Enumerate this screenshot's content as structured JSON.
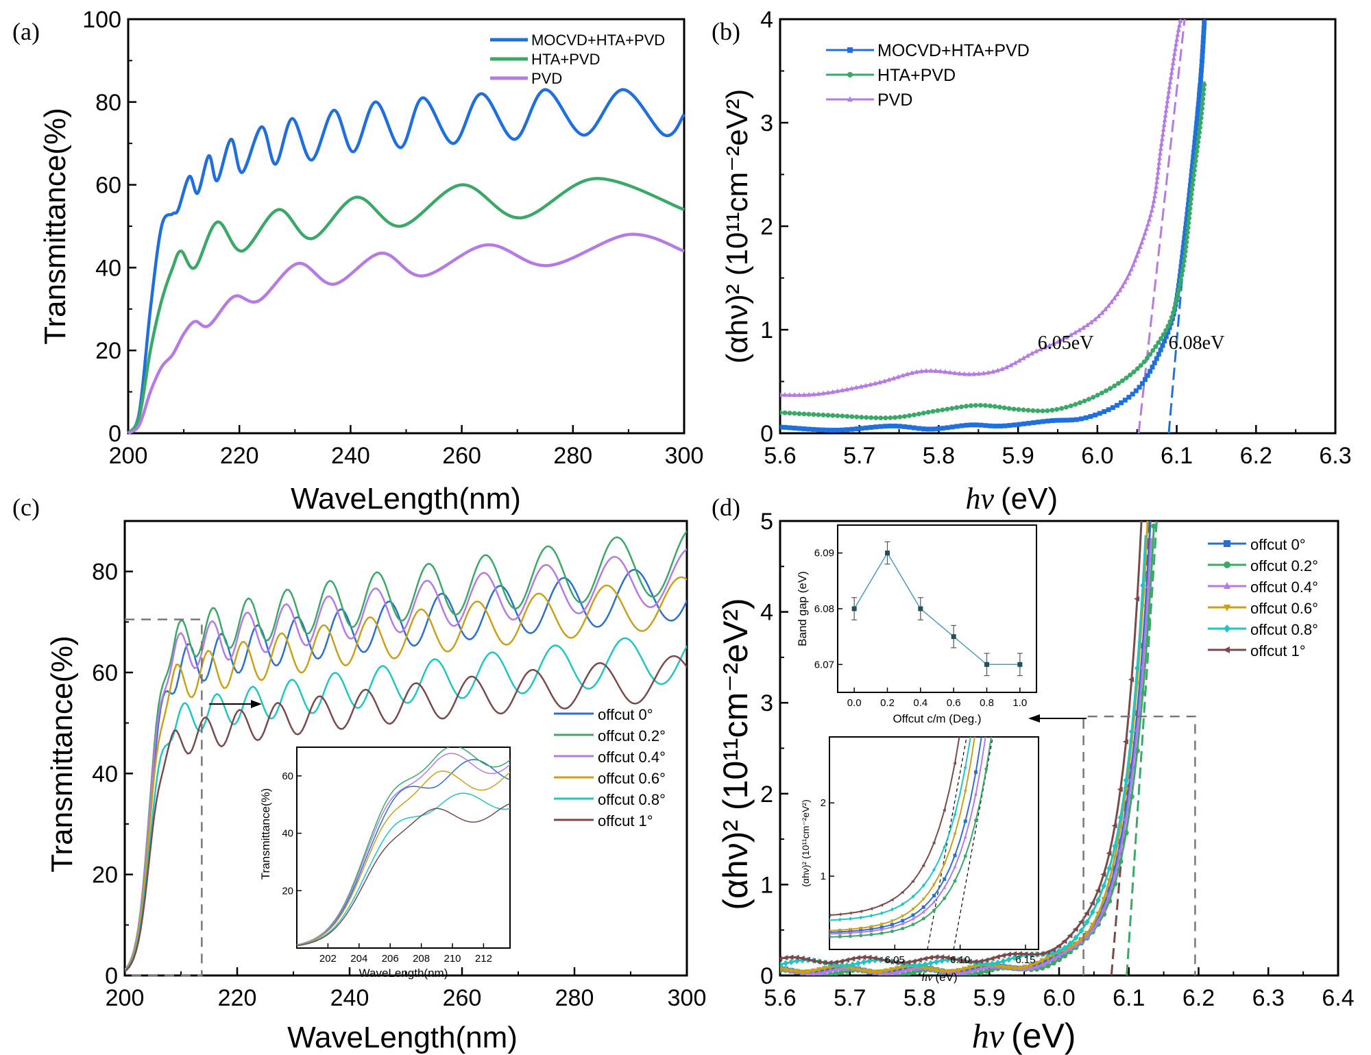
{
  "figure": {
    "panels": [
      "(a)",
      "(b)",
      "(c)",
      "(d)"
    ]
  },
  "chart_data": [
    {
      "id": "a",
      "panel_label": "(a)",
      "type": "line",
      "title": "",
      "xlabel": "WaveLength(nm)",
      "ylabel": "Transmittance(%)",
      "xlim": [
        200,
        300
      ],
      "ylim": [
        0,
        100
      ],
      "xticks": [
        200,
        220,
        240,
        260,
        280,
        300
      ],
      "yticks": [
        0,
        20,
        40,
        60,
        80,
        100
      ],
      "legend_position": "top-right",
      "series": [
        {
          "name": "MOCVD+HTA+PVD",
          "color": "#1f6fdc",
          "x": [
            200,
            202,
            204,
            206,
            208,
            209,
            211,
            212.5,
            214.5,
            216,
            218.5,
            220.5,
            224,
            226.5,
            229.5,
            233,
            237,
            240.5,
            244.5,
            249,
            253,
            258.5,
            263.5,
            269.5,
            275,
            282,
            289,
            296.5,
            300
          ],
          "y": [
            0,
            5,
            30,
            50,
            53,
            54,
            62,
            58,
            67,
            61,
            71,
            63,
            74,
            65,
            76,
            66,
            78,
            68,
            80,
            69,
            81,
            70,
            82,
            71,
            83,
            72,
            83,
            72,
            77
          ]
        },
        {
          "name": "HTA+PVD",
          "color": "#3aa866",
          "x": [
            200,
            202,
            204,
            206,
            208,
            209.5,
            212,
            216,
            220.5,
            227,
            233,
            241,
            249,
            260,
            270.5,
            284,
            300
          ],
          "y": [
            0,
            4,
            20,
            32,
            40,
            44,
            40,
            51,
            44,
            54,
            47,
            57,
            50,
            60,
            52,
            61.5,
            54
          ]
        },
        {
          "name": "PVD",
          "color": "#b57ae3",
          "x": [
            200,
            202,
            204,
            206,
            208,
            210,
            212,
            214.5,
            219,
            223.5,
            230.5,
            237,
            245.5,
            253,
            264.5,
            275.5,
            290,
            300
          ],
          "y": [
            0,
            2,
            10,
            16,
            19,
            24,
            27,
            26,
            33,
            32,
            41,
            36,
            43.5,
            38,
            45.5,
            40.5,
            48,
            44
          ]
        }
      ]
    },
    {
      "id": "b",
      "panel_label": "(b)",
      "type": "scatter-line",
      "xlabel": "hν (eV)",
      "ylabel": "(αhν)² (10¹¹cm⁻²eV²)",
      "xlim": [
        5.6,
        6.3
      ],
      "ylim": [
        0,
        4
      ],
      "xticks": [
        5.6,
        5.7,
        5.8,
        5.9,
        6.0,
        6.1,
        6.2,
        6.3
      ],
      "yticks": [
        0,
        1,
        2,
        3,
        4
      ],
      "legend_position": "top-left",
      "series": [
        {
          "name": "MOCVD+HTA+PVD",
          "color": "#1f6fdc",
          "marker": "square",
          "x": [
            5.6,
            5.67,
            5.74,
            5.79,
            5.84,
            5.88,
            5.94,
            5.98,
            6.02,
            6.05,
            6.07,
            6.09,
            6.1,
            6.11,
            6.12,
            6.13,
            6.135
          ],
          "y": [
            0.06,
            0.03,
            0.07,
            0.04,
            0.08,
            0.07,
            0.12,
            0.14,
            0.25,
            0.42,
            0.65,
            1.0,
            1.3,
            1.9,
            2.6,
            3.4,
            4.0
          ]
        },
        {
          "name": "HTA+PVD",
          "color": "#3aa866",
          "marker": "circle",
          "x": [
            5.6,
            5.67,
            5.74,
            5.8,
            5.85,
            5.9,
            5.94,
            5.98,
            6.02,
            6.05,
            6.07,
            6.09,
            6.1,
            6.11,
            6.12,
            6.13,
            6.135
          ],
          "y": [
            0.2,
            0.17,
            0.15,
            0.22,
            0.27,
            0.23,
            0.22,
            0.3,
            0.45,
            0.62,
            0.8,
            1.05,
            1.3,
            1.7,
            2.4,
            3.0,
            3.4
          ]
        },
        {
          "name": "PVD",
          "color": "#b57ae3",
          "marker": "triangle",
          "x": [
            5.6,
            5.65,
            5.72,
            5.78,
            5.84,
            5.88,
            5.92,
            5.96,
            6.0,
            6.03,
            6.05,
            6.07,
            6.08,
            6.09,
            6.1,
            6.105
          ],
          "y": [
            0.37,
            0.38,
            0.48,
            0.6,
            0.57,
            0.62,
            0.78,
            0.92,
            1.12,
            1.4,
            1.72,
            2.2,
            2.75,
            3.3,
            3.8,
            4.0
          ]
        }
      ],
      "fit_lines": [
        {
          "color": "#b57ae3",
          "x": [
            6.052,
            6.11
          ],
          "y": [
            0,
            4
          ]
        },
        {
          "color": "#1f6fdc",
          "x": [
            6.09,
            6.135
          ],
          "y": [
            0,
            4
          ]
        }
      ],
      "annotations": [
        {
          "text": "6.05eV",
          "x": 5.96,
          "y": 0.75
        },
        {
          "text": "6.08eV",
          "x": 6.125,
          "y": 0.75
        }
      ]
    },
    {
      "id": "c",
      "panel_label": "(c)",
      "type": "line",
      "xlabel": "WaveLength(nm)",
      "ylabel": "Transmittance(%)",
      "xlim": [
        200,
        300
      ],
      "ylim": [
        0,
        90
      ],
      "xticks": [
        200,
        220,
        240,
        260,
        280,
        300
      ],
      "yticks": [
        0,
        20,
        40,
        60,
        80
      ],
      "legend_position": "bottom-right",
      "zoom_box": {
        "x": [
          200,
          213.7
        ],
        "y": [
          0,
          70.5
        ]
      },
      "series": [
        {
          "name": "offcut 0°",
          "color": "#2a6fd0",
          "base": [
            53,
            76
          ],
          "period": [
            4.5,
            14
          ],
          "amp": [
            4,
            5.5
          ],
          "phase": 0.0
        },
        {
          "name": "offcut 0.2°",
          "color": "#3aa866",
          "base": [
            58,
            82
          ],
          "period": [
            4.5,
            14
          ],
          "amp": [
            4,
            6.5
          ],
          "phase": 1.5
        },
        {
          "name": "offcut 0.4°",
          "color": "#b57ae3",
          "base": [
            56,
            79
          ],
          "period": [
            4.5,
            14
          ],
          "amp": [
            4,
            5.5
          ],
          "phase": 1.7
        },
        {
          "name": "offcut 0.6°",
          "color": "#c9a017",
          "base": [
            50,
            74
          ],
          "period": [
            4.5,
            14
          ],
          "amp": [
            4,
            5
          ],
          "phase": 2.4
        },
        {
          "name": "offcut 0.8°",
          "color": "#1ec5c5",
          "base": [
            44,
            63
          ],
          "period": [
            4.5,
            14
          ],
          "amp": [
            3,
            5
          ],
          "phase": 0.8
        },
        {
          "name": "offcut 1°",
          "color": "#7a4a4a",
          "base": [
            40,
            59
          ],
          "period": [
            4.5,
            14
          ],
          "amp": [
            3,
            4.5
          ],
          "phase": 3.0
        }
      ],
      "inset": {
        "xlabel": "WaveLength(nm)",
        "ylabel": "Transmittance(%)",
        "xlim": [
          200,
          213.7
        ],
        "ylim": [
          0,
          70
        ],
        "xticks": [
          202,
          204,
          206,
          208,
          210,
          212
        ],
        "yticks": [
          20,
          40,
          60
        ]
      }
    },
    {
      "id": "d",
      "panel_label": "(d)",
      "type": "scatter-line",
      "xlabel": "hν (eV)",
      "ylabel": "(αhν)² (10¹¹cm⁻²eV²)",
      "xlim": [
        5.6,
        6.4
      ],
      "ylim": [
        0,
        5
      ],
      "xticks": [
        5.6,
        5.7,
        5.8,
        5.9,
        6.0,
        6.1,
        6.2,
        6.3,
        6.4
      ],
      "yticks": [
        0,
        1,
        2,
        3,
        4,
        5
      ],
      "legend_position": "top-right",
      "series": [
        {
          "name": "offcut 0°",
          "color": "#2a6fd0",
          "marker": "square",
          "base": 0.06,
          "edge": 6.105
        },
        {
          "name": "offcut 0.2°",
          "color": "#3aa866",
          "marker": "circle",
          "base": 0.03,
          "edge": 6.112
        },
        {
          "name": "offcut 0.4°",
          "color": "#b57ae3",
          "marker": "triangle-up",
          "base": 0.05,
          "edge": 6.108
        },
        {
          "name": "offcut 0.6°",
          "color": "#c9a017",
          "marker": "triangle-down",
          "base": 0.07,
          "edge": 6.1
        },
        {
          "name": "offcut 0.8°",
          "color": "#1ec5c5",
          "marker": "diamond",
          "base": 0.14,
          "edge": 6.098
        },
        {
          "name": "offcut 1°",
          "color": "#7a4a4a",
          "marker": "triangle-left",
          "base": 0.17,
          "edge": 6.09
        }
      ],
      "fit_lines": [
        {
          "color": "#7a4a4a",
          "x": [
            6.075,
            6.13
          ],
          "y": [
            0,
            5
          ]
        },
        {
          "color": "#3aa866",
          "x": [
            6.097,
            6.14
          ],
          "y": [
            0,
            5
          ]
        }
      ],
      "zoom_box": {
        "x": [
          6.035,
          6.195
        ],
        "y": [
          0,
          2.85
        ]
      },
      "inset_bandgap": {
        "type": "line",
        "xlabel": "Offcut c/m (Deg.)",
        "ylabel": "Band gap (eV)",
        "x": [
          0.0,
          0.2,
          0.4,
          0.6,
          0.8,
          1.0
        ],
        "y": [
          6.08,
          6.09,
          6.08,
          6.075,
          6.07,
          6.07
        ],
        "error": [
          0.002,
          0.002,
          0.002,
          0.002,
          0.002,
          0.002
        ],
        "xlim": [
          -0.1,
          1.1
        ],
        "ylim": [
          6.065,
          6.095
        ],
        "xticks": [
          "0.0",
          "0.2",
          "0.4",
          "0.6",
          "0.8",
          "1.0"
        ],
        "yticks": [
          "6.07",
          "6.08",
          "6.09"
        ],
        "color": "#4a9ac8"
      },
      "inset_zoom": {
        "xlabel": "hν (eV)",
        "ylabel": "(αhν)² (10¹¹cm⁻²eV²)",
        "xlim": [
          6.0,
          6.16
        ],
        "ylim": [
          0,
          2.9
        ],
        "xticks": [
          "6.05",
          "6.10",
          "6.15"
        ],
        "yticks": [
          "1",
          "2"
        ]
      }
    }
  ],
  "labels": {
    "a_xlabel": "WaveLength(nm)",
    "a_ylabel": "Transmittance(%)",
    "b_xlabel_unit": "(eV)",
    "b_ylabel": "(αhν)² (10¹¹cm⁻²eV²)",
    "c_xlabel": "WaveLength(nm)",
    "c_ylabel": "Transmittance(%)",
    "d_xlabel_unit": "(eV)",
    "hv": "hν",
    "c_inset_xlabel": "WaveLength(nm)",
    "c_inset_ylabel": "Transmittance(%)",
    "d_inset1_xlabel": "Offcut c/m (Deg.)",
    "d_inset1_ylabel": "Band gap (eV)",
    "d_inset2_xlabel_unit": "(eV)",
    "annot_605": "6.05eV",
    "annot_608": "6.08eV"
  }
}
